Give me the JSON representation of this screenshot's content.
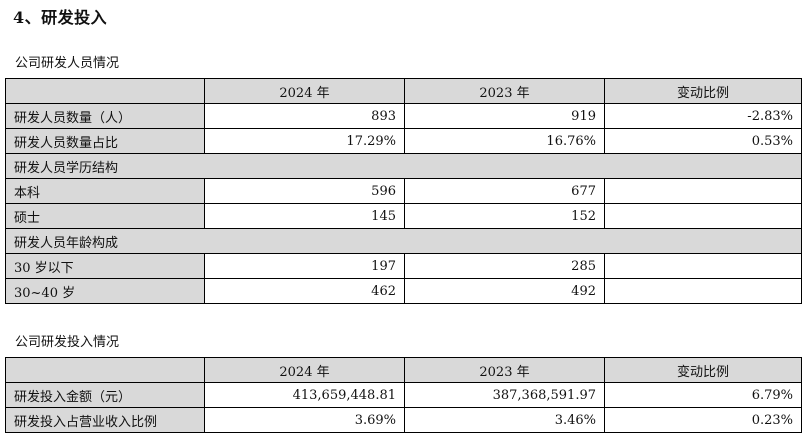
{
  "section_title": "4、研发投入",
  "personnel": {
    "title": "公司研发人员情况",
    "headers": [
      "",
      "2024 年",
      "2023 年",
      "变动比例"
    ],
    "rows": [
      {
        "label": "研发人员数量（人）",
        "y2024": "893",
        "y2023": "919",
        "change": "-2.83%"
      },
      {
        "label": "研发人员数量占比",
        "y2024": "17.29%",
        "y2023": "16.76%",
        "change": "0.53%"
      },
      {
        "label": "研发人员学历结构",
        "section": true
      },
      {
        "label": "本科",
        "y2024": "596",
        "y2023": "677",
        "change": ""
      },
      {
        "label": "硕士",
        "y2024": "145",
        "y2023": "152",
        "change": ""
      },
      {
        "label": "研发人员年龄构成",
        "section": true
      },
      {
        "label": "30 岁以下",
        "y2024": "197",
        "y2023": "285",
        "change": ""
      },
      {
        "label": "30~40 岁",
        "y2024": "462",
        "y2023": "492",
        "change": ""
      }
    ]
  },
  "investment": {
    "title": "公司研发投入情况",
    "headers": [
      "",
      "2024 年",
      "2023 年",
      "变动比例"
    ],
    "rows": [
      {
        "label": "研发投入金额（元）",
        "y2024": "413,659,448.81",
        "y2023": "387,368,591.97",
        "change": "6.79%"
      },
      {
        "label": "研发投入占营业收入比例",
        "y2024": "3.69%",
        "y2023": "3.46%",
        "change": "0.23%"
      }
    ]
  }
}
